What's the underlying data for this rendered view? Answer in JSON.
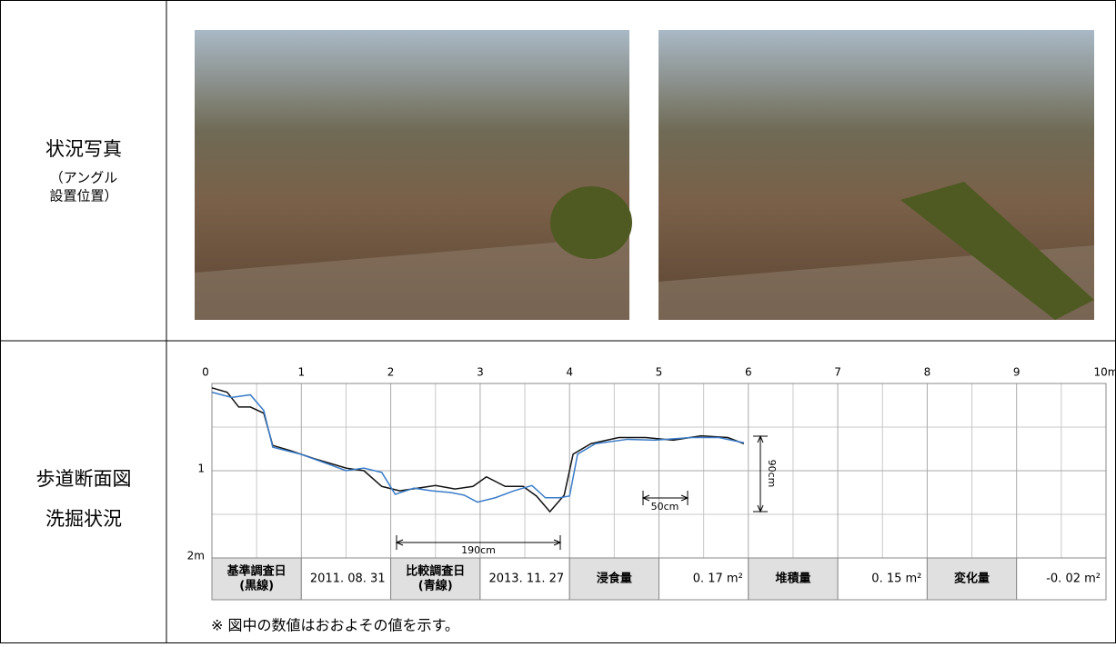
{
  "rows": [
    {
      "label": "状況写真",
      "sublabel": [
        "（アングル",
        "設置位置）"
      ]
    },
    {
      "label": [
        "歩道断面図",
        "洗掘状況"
      ]
    }
  ],
  "chart_data": {
    "type": "line",
    "y_inverted": true,
    "grid": true,
    "minor_grid": true,
    "xlim": [
      0,
      10
    ],
    "xticks": [
      0,
      1,
      2,
      3,
      4,
      5,
      6,
      7,
      8,
      9,
      {
        "value": 10,
        "label": "10m"
      }
    ],
    "ylim": [
      0,
      2
    ],
    "yticks": [
      1,
      {
        "value": 2,
        "label": "2m"
      }
    ],
    "series": [
      {
        "color": "#111111",
        "x": [
          0,
          0.17,
          0.3,
          0.43,
          0.58,
          0.68,
          0.88,
          1.14,
          1.5,
          1.7,
          1.9,
          2.1,
          2.3,
          2.5,
          2.72,
          2.92,
          3.07,
          3.28,
          3.48,
          3.63,
          3.78,
          3.94,
          4.04,
          4.24,
          4.55,
          4.85,
          5.16,
          5.47,
          5.77,
          5.95
        ],
        "values": [
          0.05,
          0.1,
          0.27,
          0.27,
          0.34,
          0.71,
          0.77,
          0.86,
          0.97,
          1.0,
          1.18,
          1.23,
          1.2,
          1.17,
          1.21,
          1.18,
          1.07,
          1.18,
          1.18,
          1.29,
          1.47,
          1.28,
          0.81,
          0.69,
          0.62,
          0.62,
          0.65,
          0.6,
          0.62,
          0.69
        ]
      },
      {
        "color": "#3a7cc8",
        "x": [
          0,
          0.22,
          0.43,
          0.58,
          0.68,
          0.99,
          1.29,
          1.5,
          1.7,
          1.9,
          2.05,
          2.26,
          2.46,
          2.67,
          2.82,
          2.97,
          3.17,
          3.38,
          3.58,
          3.73,
          3.89,
          4.0,
          4.09,
          4.29,
          4.65,
          4.95,
          5.36,
          5.67,
          5.95
        ],
        "values": [
          0.1,
          0.16,
          0.13,
          0.31,
          0.73,
          0.81,
          0.92,
          1.0,
          0.97,
          1.02,
          1.27,
          1.2,
          1.23,
          1.25,
          1.28,
          1.36,
          1.31,
          1.23,
          1.17,
          1.31,
          1.31,
          1.29,
          0.81,
          0.69,
          0.64,
          0.65,
          0.62,
          0.62,
          0.68
        ]
      }
    ],
    "annotations": [
      "190cm",
      "50cm",
      "90cm"
    ]
  },
  "summary": [
    [
      "基準調査日",
      "(黒線)"
    ],
    "2011. 08. 31",
    [
      "比較調査日",
      "(青線)"
    ],
    "2013. 11. 27",
    "浸食量",
    "0. 17 m²",
    "堆積量",
    "0. 15 m²",
    "変化量",
    "-0. 02 m²"
  ],
  "note": "※ 図中の数値はおおよその値を示す。"
}
